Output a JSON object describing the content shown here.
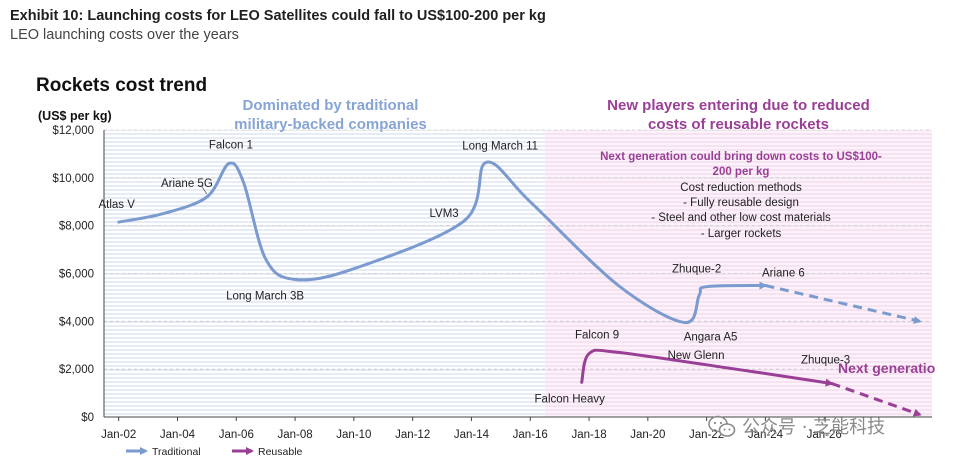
{
  "header": {
    "exhibit_title": "Exhibit 10: Launching costs for LEO Satellites could fall to US$100-200 per kg",
    "subtitle": "LEO launching costs over the years"
  },
  "chart_data": {
    "type": "line",
    "title": "Rockets cost trend",
    "ylabel": "(US$ per kg)",
    "ylim": [
      0,
      12000
    ],
    "xlim": [
      "2001-07",
      "2029-09"
    ],
    "x_ticks": [
      "Jan-02",
      "Jan-04",
      "Jan-06",
      "Jan-08",
      "Jan-10",
      "Jan-12",
      "Jan-14",
      "Jan-16",
      "Jan-18",
      "Jan-20",
      "Jan-22",
      "Jan-24",
      "Jan-26"
    ],
    "y_ticks": [
      0,
      2000,
      4000,
      6000,
      8000,
      10000,
      12000
    ],
    "y_tick_labels": [
      "$0",
      "$2,000",
      "$4,000",
      "$6,000",
      "$8,000",
      "$10,000",
      "$12,000"
    ],
    "grid": "horizontal dashed",
    "legend_placement": "bottom-left",
    "series": [
      {
        "name": "Traditional",
        "color": "#7b9bcf",
        "style": "solid-then-dashed",
        "points": [
          {
            "x": "2002-01",
            "y": 8150,
            "label": "Atlas V"
          },
          {
            "x": "2003-07",
            "y": 8500
          },
          {
            "x": "2005-01",
            "y": 9200,
            "label": "Ariane 5G"
          },
          {
            "x": "2005-10",
            "y": 10600,
            "label": "Falcon 1"
          },
          {
            "x": "2006-04",
            "y": 9800
          },
          {
            "x": "2007-01",
            "y": 6600
          },
          {
            "x": "2008-01",
            "y": 5750,
            "label": "Long March 3B"
          },
          {
            "x": "2010-01",
            "y": 6200
          },
          {
            "x": "2013-10",
            "y": 8200,
            "label": "LVM3"
          },
          {
            "x": "2014-07",
            "y": 10650,
            "label": "Long March 11"
          },
          {
            "x": "2016-01",
            "y": 9000
          },
          {
            "x": "2019-01",
            "y": 5500
          },
          {
            "x": "2021-04",
            "y": 3950,
            "label": "Angara A5"
          },
          {
            "x": "2021-10",
            "y": 5100
          },
          {
            "x": "2022-01",
            "y": 5450,
            "label": "Zhuque-2"
          },
          {
            "x": "2024-01",
            "y": 5500,
            "label": "Ariane 6"
          },
          {
            "x": "2029-04",
            "y": 4000
          }
        ],
        "dashed_from": "2024-01"
      },
      {
        "name": "Reusable",
        "color": "#9a3f96",
        "style": "solid-then-dashed",
        "points": [
          {
            "x": "2017-10",
            "y": 1450,
            "label": "Falcon Heavy"
          },
          {
            "x": "2018-01",
            "y": 2650,
            "label": "Falcon 9"
          },
          {
            "x": "2019-01",
            "y": 2700
          },
          {
            "x": "2023-01",
            "y": 2000,
            "label": "New Glenn"
          },
          {
            "x": "2026-04",
            "y": 1400,
            "label": "Zhuque-3"
          },
          {
            "x": "2029-04",
            "y": 100
          }
        ],
        "dashed_from": "2026-04"
      }
    ],
    "regions": [
      {
        "label": "Dominated by traditional military-backed companies",
        "lines": [
          "Dominated by traditional",
          "military-backed companies"
        ],
        "from": "2001-07",
        "to": "2016-07",
        "color": "#7b9bcf"
      },
      {
        "label": "New players entering due to reduced costs of reusable rockets",
        "lines": [
          "New players entering due to reduced",
          "costs of reusable rockets"
        ],
        "from": "2016-07",
        "to": "2029-09",
        "color": "#9a3f96"
      }
    ],
    "annotations": {
      "next_generation_box": {
        "headline": [
          "Next generation could bring down costs to US$100-",
          "200 per kg"
        ],
        "lines": [
          "Cost reduction methods",
          "- Fully reusable design",
          "- Steel and other low cost materials",
          "- Larger rockets"
        ]
      },
      "next_generation_label": "Next generatio"
    }
  },
  "watermark": {
    "icon": "wechat-icon",
    "text": "公众号 · 芝能科技"
  }
}
